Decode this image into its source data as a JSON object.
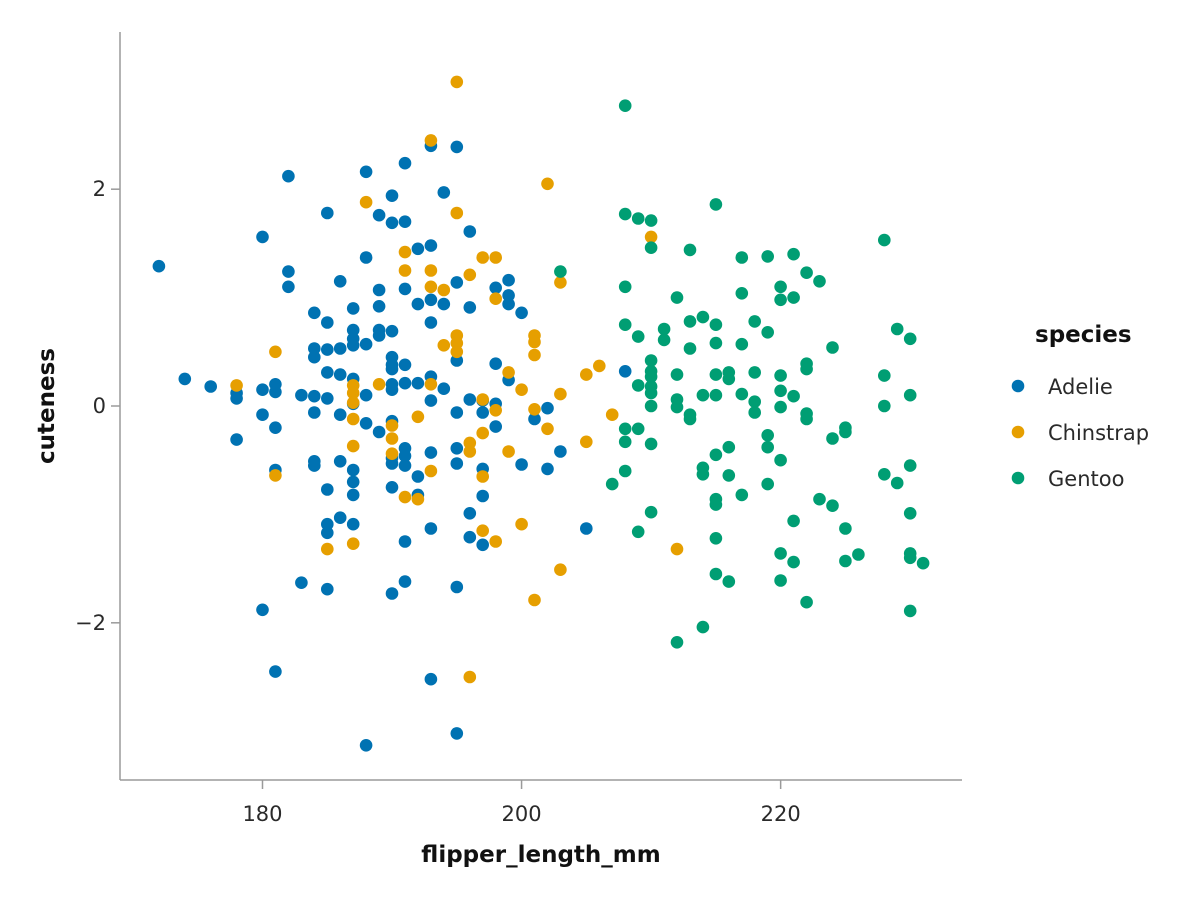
{
  "chart_data": {
    "type": "scatter",
    "title": "",
    "xlabel": "flipper_length_mm",
    "ylabel": "cuteness",
    "xlim": [
      169,
      234
    ],
    "ylim": [
      -3.45,
      3.45
    ],
    "xticks": [
      180,
      200,
      220
    ],
    "yticks": [
      -2,
      0,
      2
    ],
    "xtick_labels": [
      "180",
      "200",
      "220"
    ],
    "ytick_labels": [
      "−2",
      "0",
      "2"
    ],
    "grid": false,
    "legend": {
      "title": "species",
      "placement": "right"
    },
    "series": [
      {
        "name": "Adelie",
        "color": "#0072B2",
        "points": [
          [
            172,
            1.29
          ],
          [
            174,
            0.25
          ],
          [
            176,
            0.18
          ],
          [
            178,
            0.12
          ],
          [
            178,
            0.07
          ],
          [
            178,
            -0.31
          ],
          [
            180,
            1.56
          ],
          [
            180,
            0.15
          ],
          [
            180,
            -0.08
          ],
          [
            180,
            -1.88
          ],
          [
            181,
            0.2
          ],
          [
            181,
            0.13
          ],
          [
            181,
            -0.2
          ],
          [
            181,
            -0.59
          ],
          [
            181,
            -2.45
          ],
          [
            182,
            2.12
          ],
          [
            182,
            1.24
          ],
          [
            182,
            1.1
          ],
          [
            183,
            0.1
          ],
          [
            183,
            -1.63
          ],
          [
            184,
            0.86
          ],
          [
            184,
            0.53
          ],
          [
            184,
            0.45
          ],
          [
            184,
            0.09
          ],
          [
            184,
            -0.06
          ],
          [
            184,
            -0.51
          ],
          [
            184,
            -0.55
          ],
          [
            185,
            1.78
          ],
          [
            185,
            0.77
          ],
          [
            185,
            0.52
          ],
          [
            185,
            0.31
          ],
          [
            185,
            0.07
          ],
          [
            185,
            -0.77
          ],
          [
            185,
            -1.09
          ],
          [
            185,
            -1.17
          ],
          [
            185,
            -1.69
          ],
          [
            186,
            1.15
          ],
          [
            186,
            0.53
          ],
          [
            186,
            0.29
          ],
          [
            186,
            -0.08
          ],
          [
            186,
            -0.51
          ],
          [
            186,
            -1.03
          ],
          [
            187,
            0.9
          ],
          [
            187,
            0.7
          ],
          [
            187,
            0.62
          ],
          [
            187,
            0.56
          ],
          [
            187,
            0.25
          ],
          [
            187,
            0.02
          ],
          [
            187,
            -0.59
          ],
          [
            187,
            -0.7
          ],
          [
            187,
            -0.82
          ],
          [
            187,
            -1.09
          ],
          [
            188,
            2.16
          ],
          [
            188,
            1.37
          ],
          [
            188,
            0.57
          ],
          [
            188,
            0.1
          ],
          [
            188,
            -0.16
          ],
          [
            188,
            -3.13
          ],
          [
            189,
            1.76
          ],
          [
            189,
            1.07
          ],
          [
            189,
            0.92
          ],
          [
            189,
            0.7
          ],
          [
            189,
            0.65
          ],
          [
            189,
            -0.24
          ],
          [
            190,
            1.94
          ],
          [
            190,
            1.69
          ],
          [
            190,
            0.69
          ],
          [
            190,
            0.45
          ],
          [
            190,
            0.38
          ],
          [
            190,
            0.34
          ],
          [
            190,
            0.2
          ],
          [
            190,
            0.15
          ],
          [
            190,
            -0.14
          ],
          [
            190,
            -0.48
          ],
          [
            190,
            -0.53
          ],
          [
            190,
            -0.75
          ],
          [
            190,
            -1.73
          ],
          [
            191,
            2.24
          ],
          [
            191,
            1.7
          ],
          [
            191,
            1.08
          ],
          [
            191,
            0.38
          ],
          [
            191,
            0.21
          ],
          [
            191,
            -0.39
          ],
          [
            191,
            -0.46
          ],
          [
            191,
            -0.55
          ],
          [
            191,
            -1.25
          ],
          [
            191,
            -1.62
          ],
          [
            192,
            1.45
          ],
          [
            192,
            0.94
          ],
          [
            192,
            0.21
          ],
          [
            192,
            -0.65
          ],
          [
            192,
            -0.82
          ],
          [
            193,
            2.4
          ],
          [
            193,
            1.48
          ],
          [
            193,
            0.98
          ],
          [
            193,
            0.77
          ],
          [
            193,
            0.27
          ],
          [
            193,
            0.05
          ],
          [
            193,
            -0.43
          ],
          [
            193,
            -1.13
          ],
          [
            193,
            -2.52
          ],
          [
            194,
            1.97
          ],
          [
            194,
            0.94
          ],
          [
            194,
            0.16
          ],
          [
            195,
            2.39
          ],
          [
            195,
            1.14
          ],
          [
            195,
            0.42
          ],
          [
            195,
            -0.06
          ],
          [
            195,
            -0.39
          ],
          [
            195,
            -0.53
          ],
          [
            195,
            -1.67
          ],
          [
            195,
            -3.02
          ],
          [
            196,
            1.61
          ],
          [
            196,
            0.91
          ],
          [
            196,
            0.06
          ],
          [
            196,
            -0.99
          ],
          [
            196,
            -1.21
          ],
          [
            197,
            0.05
          ],
          [
            197,
            -0.06
          ],
          [
            197,
            -0.58
          ],
          [
            197,
            -0.83
          ],
          [
            197,
            -1.28
          ],
          [
            198,
            1.09
          ],
          [
            198,
            0.39
          ],
          [
            198,
            0.02
          ],
          [
            198,
            -0.19
          ],
          [
            199,
            1.16
          ],
          [
            199,
            1.02
          ],
          [
            199,
            0.94
          ],
          [
            199,
            0.24
          ],
          [
            200,
            0.86
          ],
          [
            200,
            -0.54
          ],
          [
            201,
            -0.12
          ],
          [
            202,
            -0.02
          ],
          [
            202,
            -0.58
          ],
          [
            203,
            -0.42
          ],
          [
            205,
            -1.13
          ],
          [
            208,
            0.32
          ]
        ]
      },
      {
        "name": "Chinstrap",
        "color": "#E69F00",
        "points": [
          [
            178,
            0.19
          ],
          [
            181,
            0.5
          ],
          [
            181,
            -0.64
          ],
          [
            185,
            -1.32
          ],
          [
            187,
            0.19
          ],
          [
            187,
            0.12
          ],
          [
            187,
            0.03
          ],
          [
            187,
            -0.12
          ],
          [
            187,
            -0.37
          ],
          [
            187,
            -1.27
          ],
          [
            188,
            1.88
          ],
          [
            189,
            0.2
          ],
          [
            190,
            -0.18
          ],
          [
            190,
            -0.3
          ],
          [
            190,
            -0.44
          ],
          [
            191,
            1.42
          ],
          [
            191,
            1.25
          ],
          [
            191,
            -0.84
          ],
          [
            192,
            -0.1
          ],
          [
            192,
            -0.86
          ],
          [
            193,
            2.45
          ],
          [
            193,
            1.25
          ],
          [
            193,
            1.1
          ],
          [
            193,
            0.2
          ],
          [
            193,
            -0.6
          ],
          [
            194,
            1.07
          ],
          [
            194,
            0.56
          ],
          [
            195,
            2.99
          ],
          [
            195,
            1.78
          ],
          [
            195,
            0.65
          ],
          [
            195,
            0.58
          ],
          [
            195,
            0.5
          ],
          [
            196,
            1.21
          ],
          [
            196,
            -0.34
          ],
          [
            196,
            -0.42
          ],
          [
            196,
            -2.5
          ],
          [
            197,
            1.37
          ],
          [
            197,
            0.06
          ],
          [
            197,
            -0.25
          ],
          [
            197,
            -0.65
          ],
          [
            197,
            -1.15
          ],
          [
            198,
            1.37
          ],
          [
            198,
            0.99
          ],
          [
            198,
            -0.04
          ],
          [
            198,
            -1.25
          ],
          [
            199,
            0.31
          ],
          [
            199,
            -0.42
          ],
          [
            200,
            0.15
          ],
          [
            200,
            -1.09
          ],
          [
            201,
            0.65
          ],
          [
            201,
            0.59
          ],
          [
            201,
            0.47
          ],
          [
            201,
            -0.03
          ],
          [
            201,
            -1.79
          ],
          [
            202,
            2.05
          ],
          [
            202,
            -0.21
          ],
          [
            203,
            1.14
          ],
          [
            203,
            0.11
          ],
          [
            203,
            -1.51
          ],
          [
            205,
            0.29
          ],
          [
            205,
            -0.33
          ],
          [
            206,
            0.37
          ],
          [
            207,
            -0.08
          ],
          [
            210,
            1.56
          ],
          [
            212,
            -1.32
          ]
        ]
      },
      {
        "name": "Gentoo",
        "color": "#009E73",
        "points": [
          [
            203,
            1.24
          ],
          [
            207,
            -0.72
          ],
          [
            208,
            2.77
          ],
          [
            208,
            1.77
          ],
          [
            208,
            1.1
          ],
          [
            208,
            0.75
          ],
          [
            208,
            -0.33
          ],
          [
            208,
            -0.6
          ],
          [
            208,
            -0.21
          ],
          [
            209,
            1.73
          ],
          [
            209,
            0.64
          ],
          [
            209,
            0.19
          ],
          [
            209,
            -0.21
          ],
          [
            209,
            -1.16
          ],
          [
            210,
            1.71
          ],
          [
            210,
            1.46
          ],
          [
            210,
            0.42
          ],
          [
            210,
            0.32
          ],
          [
            210,
            0.27
          ],
          [
            210,
            0.18
          ],
          [
            210,
            0.12
          ],
          [
            210,
            0.0
          ],
          [
            210,
            -0.35
          ],
          [
            210,
            -0.98
          ],
          [
            211,
            0.71
          ],
          [
            211,
            0.61
          ],
          [
            212,
            1.0
          ],
          [
            212,
            0.29
          ],
          [
            212,
            0.06
          ],
          [
            212,
            -0.01
          ],
          [
            212,
            -2.18
          ],
          [
            213,
            1.44
          ],
          [
            213,
            0.78
          ],
          [
            213,
            0.53
          ],
          [
            213,
            -0.08
          ],
          [
            213,
            -0.12
          ],
          [
            214,
            0.82
          ],
          [
            214,
            0.1
          ],
          [
            214,
            -0.57
          ],
          [
            214,
            -0.63
          ],
          [
            214,
            -2.04
          ],
          [
            215,
            1.86
          ],
          [
            215,
            0.75
          ],
          [
            215,
            0.58
          ],
          [
            215,
            0.29
          ],
          [
            215,
            0.1
          ],
          [
            215,
            -0.45
          ],
          [
            215,
            -0.86
          ],
          [
            215,
            -0.91
          ],
          [
            215,
            -1.22
          ],
          [
            215,
            -1.55
          ],
          [
            216,
            0.31
          ],
          [
            216,
            0.25
          ],
          [
            216,
            -0.38
          ],
          [
            216,
            -0.64
          ],
          [
            216,
            -1.62
          ],
          [
            217,
            1.37
          ],
          [
            217,
            1.04
          ],
          [
            217,
            0.57
          ],
          [
            217,
            0.11
          ],
          [
            217,
            -0.82
          ],
          [
            218,
            0.78
          ],
          [
            218,
            0.31
          ],
          [
            218,
            0.04
          ],
          [
            218,
            -0.06
          ],
          [
            219,
            1.38
          ],
          [
            219,
            0.68
          ],
          [
            219,
            -0.27
          ],
          [
            219,
            -0.38
          ],
          [
            219,
            -0.72
          ],
          [
            220,
            1.1
          ],
          [
            220,
            0.98
          ],
          [
            220,
            0.28
          ],
          [
            220,
            0.14
          ],
          [
            220,
            -0.01
          ],
          [
            220,
            -0.5
          ],
          [
            220,
            -1.36
          ],
          [
            220,
            -1.61
          ],
          [
            221,
            1.4
          ],
          [
            221,
            1.0
          ],
          [
            221,
            0.09
          ],
          [
            221,
            -1.06
          ],
          [
            221,
            -1.44
          ],
          [
            222,
            1.23
          ],
          [
            222,
            0.39
          ],
          [
            222,
            0.34
          ],
          [
            222,
            -0.07
          ],
          [
            222,
            -0.12
          ],
          [
            222,
            -1.81
          ],
          [
            223,
            1.15
          ],
          [
            223,
            -0.86
          ],
          [
            224,
            0.54
          ],
          [
            224,
            -0.3
          ],
          [
            224,
            -0.92
          ],
          [
            225,
            -0.2
          ],
          [
            225,
            -0.24
          ],
          [
            225,
            -1.13
          ],
          [
            225,
            -1.43
          ],
          [
            226,
            -1.37
          ],
          [
            228,
            1.53
          ],
          [
            228,
            0.28
          ],
          [
            228,
            0.0
          ],
          [
            228,
            -0.63
          ],
          [
            229,
            0.71
          ],
          [
            229,
            -0.71
          ],
          [
            230,
            0.62
          ],
          [
            230,
            0.1
          ],
          [
            230,
            -0.55
          ],
          [
            230,
            -0.99
          ],
          [
            230,
            -1.36
          ],
          [
            230,
            -1.4
          ],
          [
            230,
            -1.89
          ],
          [
            231,
            -1.45
          ]
        ]
      }
    ]
  }
}
